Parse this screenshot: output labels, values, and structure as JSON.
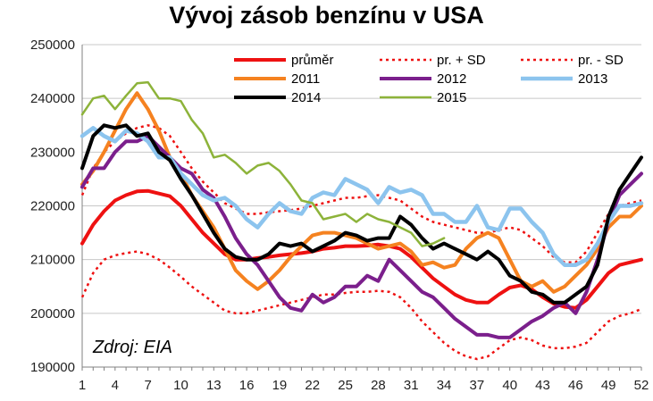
{
  "chart_data": {
    "type": "line",
    "title": "Vývoj zásob benzínu v USA",
    "source": "Zdroj: EIA",
    "xlabel": "",
    "ylabel": "",
    "xlim": [
      1,
      52
    ],
    "ylim": [
      190000,
      250000
    ],
    "grid": true,
    "x_ticks": [
      1,
      4,
      7,
      10,
      13,
      16,
      19,
      22,
      25,
      28,
      31,
      34,
      37,
      40,
      43,
      46,
      49,
      52
    ],
    "y_ticks": [
      190000,
      200000,
      210000,
      220000,
      230000,
      240000,
      250000
    ],
    "legend_position": "top",
    "series": [
      {
        "name": "průměr",
        "color": "#ee1111",
        "style": "solid",
        "width": 4,
        "x": [
          1,
          2,
          3,
          4,
          5,
          6,
          7,
          8,
          9,
          10,
          11,
          12,
          13,
          14,
          15,
          16,
          17,
          18,
          19,
          20,
          21,
          22,
          23,
          24,
          25,
          26,
          27,
          28,
          29,
          30,
          31,
          32,
          33,
          34,
          35,
          36,
          37,
          38,
          39,
          40,
          41,
          42,
          43,
          44,
          45,
          46,
          47,
          48,
          49,
          50,
          51,
          52
        ],
        "y": [
          213000,
          216500,
          219000,
          221000,
          222000,
          222700,
          222800,
          222300,
          221800,
          220000,
          217500,
          215000,
          213000,
          211000,
          210000,
          210000,
          210300,
          210500,
          210800,
          211000,
          211200,
          211500,
          212000,
          212200,
          212500,
          212500,
          212600,
          212800,
          212500,
          212000,
          210500,
          208500,
          206500,
          205000,
          203500,
          202500,
          202000,
          202000,
          203500,
          204800,
          205200,
          204500,
          203000,
          201800,
          201200,
          201000,
          202500,
          205000,
          207500,
          209000,
          209500,
          210000
        ]
      },
      {
        "name": "pr. + SD",
        "color": "#ee1111",
        "style": "dotted",
        "width": 2.5,
        "x": [
          1,
          2,
          3,
          4,
          5,
          6,
          7,
          8,
          9,
          10,
          11,
          12,
          13,
          14,
          15,
          16,
          17,
          18,
          19,
          20,
          21,
          22,
          23,
          24,
          25,
          26,
          27,
          28,
          29,
          30,
          31,
          32,
          33,
          34,
          35,
          36,
          37,
          38,
          39,
          40,
          41,
          42,
          43,
          44,
          45,
          46,
          47,
          48,
          49,
          50,
          51,
          52
        ],
        "y": [
          222000,
          227000,
          230000,
          232000,
          233500,
          234500,
          235000,
          234500,
          233000,
          230000,
          227000,
          224500,
          222500,
          220500,
          219500,
          218500,
          218500,
          218800,
          219000,
          219200,
          219500,
          220000,
          220500,
          221000,
          221500,
          221500,
          221800,
          222000,
          221500,
          221000,
          219500,
          218000,
          217000,
          216500,
          216000,
          215500,
          215000,
          215000,
          215500,
          216000,
          215500,
          214000,
          212500,
          210500,
          209500,
          209500,
          211500,
          215000,
          218500,
          220000,
          220500,
          221000
        ]
      },
      {
        "name": "pr. - SD",
        "color": "#ee1111",
        "style": "dotted",
        "width": 2.5,
        "x": [
          1,
          2,
          3,
          4,
          5,
          6,
          7,
          8,
          9,
          10,
          11,
          12,
          13,
          14,
          15,
          16,
          17,
          18,
          19,
          20,
          21,
          22,
          23,
          24,
          25,
          26,
          27,
          28,
          29,
          30,
          31,
          32,
          33,
          34,
          35,
          36,
          37,
          38,
          39,
          40,
          41,
          42,
          43,
          44,
          45,
          46,
          47,
          48,
          49,
          50,
          51,
          52
        ],
        "y": [
          203000,
          207500,
          210000,
          210800,
          211200,
          211500,
          211000,
          210000,
          208500,
          206800,
          205000,
          203500,
          202000,
          200500,
          200000,
          200000,
          200500,
          201000,
          201500,
          202000,
          202500,
          203000,
          203500,
          203500,
          203800,
          204000,
          204000,
          204200,
          204000,
          203000,
          201000,
          198500,
          196500,
          194500,
          193000,
          192000,
          191500,
          192000,
          193500,
          195000,
          195500,
          195000,
          194000,
          193500,
          193500,
          193800,
          194500,
          196500,
          198500,
          199500,
          200000,
          200800
        ]
      },
      {
        "name": "2011",
        "color": "#f58220",
        "style": "solid",
        "width": 4,
        "x": [
          1,
          2,
          3,
          4,
          5,
          6,
          7,
          8,
          9,
          10,
          11,
          12,
          13,
          14,
          15,
          16,
          17,
          18,
          19,
          20,
          21,
          22,
          23,
          24,
          25,
          26,
          27,
          28,
          29,
          30,
          31,
          32,
          33,
          34,
          35,
          36,
          37,
          38,
          39,
          40,
          41,
          42,
          43,
          44,
          45,
          46,
          47,
          48,
          49,
          50,
          51,
          52
        ],
        "y": [
          224000,
          226500,
          230000,
          234000,
          238000,
          241000,
          238000,
          234000,
          229000,
          226000,
          222000,
          219000,
          216000,
          212000,
          208000,
          206000,
          204500,
          206000,
          208000,
          210500,
          212500,
          214500,
          215000,
          215000,
          214500,
          214000,
          213000,
          212000,
          212500,
          213000,
          211500,
          209000,
          209500,
          208500,
          209000,
          212000,
          214000,
          215000,
          214000,
          210000,
          206000,
          205000,
          206000,
          204000,
          205000,
          207000,
          209000,
          212000,
          216000,
          218000,
          218000,
          220000
        ]
      },
      {
        "name": "2012",
        "color": "#7b1f8c",
        "style": "solid",
        "width": 4,
        "x": [
          1,
          2,
          3,
          4,
          5,
          6,
          7,
          8,
          9,
          10,
          11,
          12,
          13,
          14,
          15,
          16,
          17,
          18,
          19,
          20,
          21,
          22,
          23,
          24,
          25,
          26,
          27,
          28,
          29,
          30,
          31,
          32,
          33,
          34,
          35,
          36,
          37,
          38,
          39,
          40,
          41,
          42,
          43,
          44,
          45,
          46,
          47,
          48,
          49,
          50,
          51,
          52
        ],
        "y": [
          223500,
          227000,
          227000,
          230000,
          232000,
          232000,
          233000,
          231000,
          229000,
          227000,
          226000,
          223000,
          221500,
          218000,
          214000,
          211000,
          209000,
          206000,
          203000,
          201000,
          200500,
          203500,
          202000,
          203000,
          205000,
          205000,
          207000,
          206000,
          210000,
          208000,
          206000,
          204000,
          203000,
          201000,
          199000,
          197500,
          196000,
          196000,
          195500,
          195500,
          197000,
          198500,
          199500,
          201000,
          202000,
          200000,
          204000,
          210000,
          217000,
          222000,
          224000,
          226000
        ]
      },
      {
        "name": "2013",
        "color": "#8cc4ee",
        "style": "solid",
        "width": 4.5,
        "x": [
          1,
          2,
          3,
          4,
          5,
          6,
          7,
          8,
          9,
          10,
          11,
          12,
          13,
          14,
          15,
          16,
          17,
          18,
          19,
          20,
          21,
          22,
          23,
          24,
          25,
          26,
          27,
          28,
          29,
          30,
          31,
          32,
          33,
          34,
          35,
          36,
          37,
          38,
          39,
          40,
          41,
          42,
          43,
          44,
          45,
          46,
          47,
          48,
          49,
          50,
          51,
          52
        ],
        "y": [
          233000,
          234500,
          233000,
          232000,
          234000,
          233500,
          232000,
          229000,
          229000,
          226000,
          224000,
          222000,
          221000,
          221500,
          220000,
          217500,
          216000,
          218500,
          220500,
          219000,
          218500,
          221500,
          222500,
          222000,
          225000,
          224000,
          223000,
          220500,
          223500,
          222500,
          223000,
          222000,
          218500,
          218500,
          217000,
          217000,
          220000,
          216000,
          215500,
          219500,
          219500,
          217000,
          215000,
          211000,
          209000,
          209000,
          210000,
          213000,
          217000,
          220000,
          220000,
          220500
        ]
      },
      {
        "name": "2014",
        "color": "#000000",
        "style": "solid",
        "width": 4,
        "x": [
          1,
          2,
          3,
          4,
          5,
          6,
          7,
          8,
          9,
          10,
          11,
          12,
          13,
          14,
          15,
          16,
          17,
          18,
          19,
          20,
          21,
          22,
          23,
          24,
          25,
          26,
          27,
          28,
          29,
          30,
          31,
          32,
          33,
          34,
          35,
          36,
          37,
          38,
          39,
          40,
          41,
          42,
          43,
          44,
          45,
          46,
          47,
          48,
          49,
          50,
          51,
          52
        ],
        "y": [
          227000,
          233000,
          235000,
          234500,
          235000,
          233000,
          233500,
          230000,
          228500,
          225000,
          222000,
          218500,
          215000,
          212000,
          210500,
          210000,
          210000,
          211000,
          213000,
          212500,
          213000,
          211500,
          212500,
          213500,
          215000,
          214500,
          213500,
          214000,
          214000,
          218000,
          216500,
          214000,
          212000,
          213000,
          212000,
          211000,
          210000,
          211500,
          210000,
          207000,
          206000,
          204000,
          203500,
          202000,
          202000,
          203500,
          205000,
          209000,
          218000,
          223000,
          226000,
          229000
        ]
      },
      {
        "name": "2015",
        "color": "#8db33a",
        "style": "solid",
        "width": 2.5,
        "x": [
          1,
          2,
          3,
          4,
          5,
          6,
          7,
          8,
          9,
          10,
          11,
          12,
          13,
          14,
          15,
          16,
          17,
          18,
          19,
          20,
          21,
          22,
          23,
          24,
          25,
          26,
          27,
          28,
          29,
          30,
          31,
          32,
          33,
          34
        ],
        "y": [
          237000,
          240000,
          240500,
          238000,
          240500,
          242800,
          243000,
          240000,
          240000,
          239500,
          236000,
          233500,
          229000,
          229500,
          228000,
          226000,
          227500,
          228000,
          226500,
          224000,
          221000,
          220500,
          217500,
          218000,
          218500,
          217000,
          218500,
          217500,
          217000,
          216000,
          215000,
          212500,
          213000,
          214000
        ]
      }
    ]
  }
}
